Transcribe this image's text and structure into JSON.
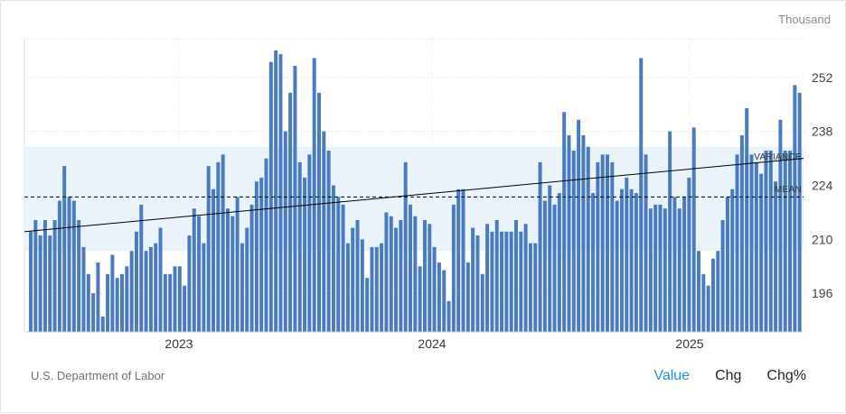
{
  "unit_label": "Thousand",
  "source": "U.S. Department of Labor",
  "tabs": [
    {
      "label": "Value",
      "active": true
    },
    {
      "label": "Chg",
      "active": false
    },
    {
      "label": "Chg%",
      "active": false
    }
  ],
  "colors": {
    "bar": "#4a7bbf",
    "variance_band": "#eaf3fa",
    "trend_line": "#000000",
    "mean_line": "#000000",
    "tab_active": "#1f8fe5"
  },
  "chart_data": {
    "type": "bar",
    "x_ticks": [
      "2023",
      "2024",
      "2025"
    ],
    "y_ticks": [
      196,
      210,
      224,
      238,
      252
    ],
    "ylim": [
      186,
      262
    ],
    "grid": true,
    "annotations": {
      "variance_label": "VARIANCE",
      "mean_label": "MEAN",
      "mean": 221,
      "variance_band": [
        207,
        234
      ],
      "trend": [
        212,
        231
      ]
    },
    "values": [
      212,
      215,
      211,
      215,
      211,
      215,
      220,
      229,
      221,
      220,
      215,
      208,
      201,
      196,
      204,
      190,
      201,
      206,
      200,
      201,
      203,
      207,
      212,
      219,
      207,
      208,
      209,
      213,
      201,
      201,
      203,
      203,
      198,
      211,
      218,
      216,
      209,
      229,
      223,
      230,
      232,
      218,
      216,
      221,
      209,
      213,
      219,
      225,
      226,
      231,
      256,
      259,
      258,
      238,
      248,
      255,
      230,
      226,
      232,
      257,
      248,
      238,
      233,
      224,
      221,
      219,
      209,
      213,
      215,
      210,
      200,
      208,
      208,
      209,
      217,
      216,
      213,
      215,
      230,
      219,
      216,
      203,
      215,
      214,
      208,
      204,
      202,
      194,
      219,
      223,
      223,
      204,
      213,
      211,
      201,
      214,
      212,
      215,
      212,
      212,
      212,
      215,
      212,
      214,
      209,
      209,
      230,
      220,
      224,
      219,
      222,
      243,
      237,
      233,
      241,
      237,
      234,
      222,
      230,
      232,
      232,
      230,
      220,
      223,
      226,
      223,
      222,
      257,
      232,
      218,
      219,
      219,
      218,
      238,
      221,
      218,
      221,
      226,
      239,
      207,
      201,
      198,
      205,
      207,
      215,
      221,
      223,
      232,
      237,
      244,
      232,
      230,
      227,
      233,
      233,
      225,
      241,
      233,
      233,
      250,
      248
    ]
  }
}
